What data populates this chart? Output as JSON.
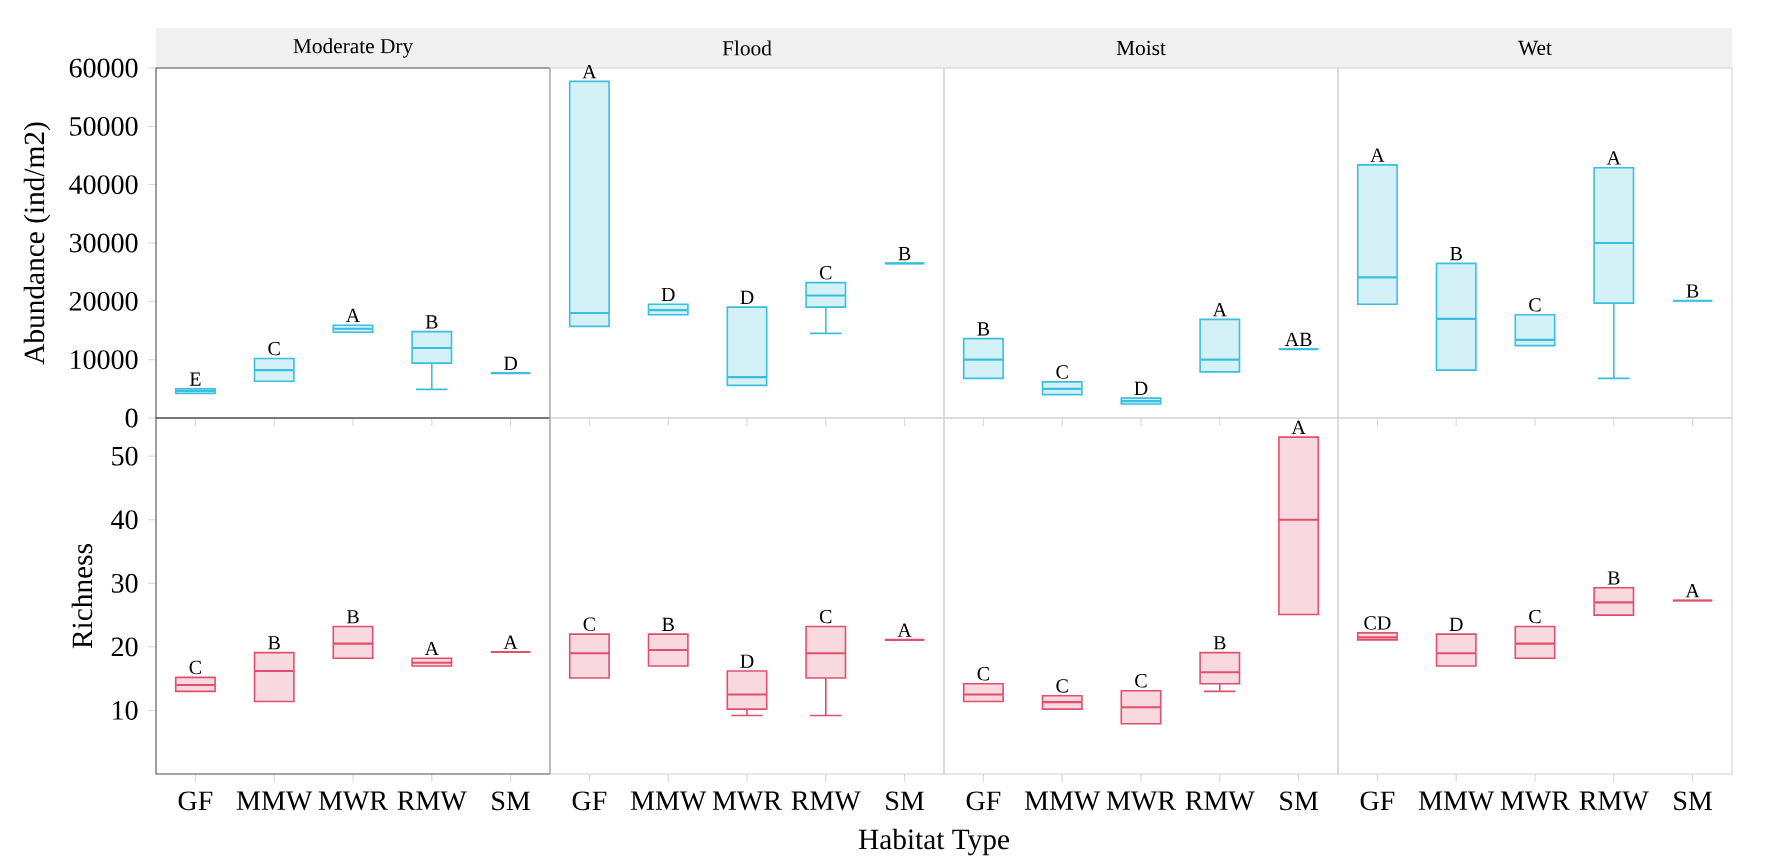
{
  "chart_data": [
    {
      "type": "box",
      "title": "Moderate Dry",
      "ylabel": "Abundance (ind/m2)",
      "color": "#3bbfe0",
      "categories": [
        "GF",
        "MMW",
        "MWR",
        "RMW",
        "SM"
      ],
      "ylim": [
        0,
        60000
      ],
      "yticks": [
        0,
        10000,
        20000,
        30000,
        40000,
        50000,
        60000
      ],
      "tick_labels": "y",
      "boxes": [
        {
          "low": 4200,
          "q1": 4200,
          "median": 4600,
          "q3": 5000,
          "high": 5000
        },
        {
          "low": 6300,
          "q1": 6300,
          "median": 8200,
          "q3": 10200,
          "high": 10200
        },
        {
          "low": 14700,
          "q1": 14700,
          "median": 15300,
          "q3": 15900,
          "high": 15900
        },
        {
          "low": 4900,
          "q1": 9400,
          "median": 12000,
          "q3": 14800,
          "high": 14800
        },
        {
          "low": 7700,
          "q1": 7700,
          "median": 7700,
          "q3": 7700,
          "high": 7700
        }
      ],
      "annotations": [
        {
          "text": "E",
          "x": "GF",
          "y": 5000
        },
        {
          "text": "C",
          "x": "MMW",
          "y": 10200
        },
        {
          "text": "A",
          "x": "MWR",
          "y": 15900
        },
        {
          "text": "B",
          "x": "RMW",
          "y": 14800
        },
        {
          "text": "D",
          "x": "SM",
          "y": 7700
        }
      ]
    },
    {
      "type": "box",
      "title": "Flood",
      "color": "#3bbfe0",
      "categories": [
        "GF",
        "MMW",
        "MWR",
        "RMW",
        "SM"
      ],
      "ylim": [
        0,
        60000
      ],
      "yticks": [
        0,
        10000,
        20000,
        30000,
        40000,
        50000,
        60000
      ],
      "tick_labels": false,
      "boxes": [
        {
          "low": 15700,
          "q1": 15700,
          "median": 18000,
          "q3": 57700,
          "high": 57700
        },
        {
          "low": 17700,
          "q1": 17700,
          "median": 18500,
          "q3": 19500,
          "high": 19500
        },
        {
          "low": 5600,
          "q1": 5600,
          "median": 7000,
          "q3": 19000,
          "high": 19000
        },
        {
          "low": 14500,
          "q1": 19000,
          "median": 21000,
          "q3": 23200,
          "high": 23200
        },
        {
          "low": 26500,
          "q1": 26500,
          "median": 26500,
          "q3": 26500,
          "high": 26500
        }
      ],
      "annotations": [
        {
          "text": "A",
          "x": "GF",
          "y": 57700
        },
        {
          "text": "D",
          "x": "MMW",
          "y": 19500
        },
        {
          "text": "D",
          "x": "MWR",
          "y": 19000
        },
        {
          "text": "C",
          "x": "RMW",
          "y": 23200
        },
        {
          "text": "B",
          "x": "SM",
          "y": 26500
        }
      ]
    },
    {
      "type": "box",
      "title": "Moist",
      "color": "#3bbfe0",
      "categories": [
        "GF",
        "MMW",
        "MWR",
        "RMW",
        "SM"
      ],
      "ylim": [
        0,
        60000
      ],
      "yticks": [
        0,
        10000,
        20000,
        30000,
        40000,
        50000,
        60000
      ],
      "tick_labels": false,
      "boxes": [
        {
          "low": 6800,
          "q1": 6800,
          "median": 10000,
          "q3": 13600,
          "high": 13600
        },
        {
          "low": 4000,
          "q1": 4000,
          "median": 5000,
          "q3": 6200,
          "high": 6200
        },
        {
          "low": 2400,
          "q1": 2400,
          "median": 2900,
          "q3": 3400,
          "high": 3400
        },
        {
          "low": 7900,
          "q1": 7900,
          "median": 10000,
          "q3": 16900,
          "high": 16900
        },
        {
          "low": 11800,
          "q1": 11800,
          "median": 11800,
          "q3": 11800,
          "high": 11800
        }
      ],
      "annotations": [
        {
          "text": "B",
          "x": "GF",
          "y": 13600
        },
        {
          "text": "C",
          "x": "MMW",
          "y": 6200
        },
        {
          "text": "D",
          "x": "MWR",
          "y": 3400
        },
        {
          "text": "A",
          "x": "RMW",
          "y": 16900
        },
        {
          "text": "AB",
          "x": "SM",
          "y": 11800
        }
      ]
    },
    {
      "type": "box",
      "title": "Wet",
      "color": "#3bbfe0",
      "categories": [
        "GF",
        "MMW",
        "MWR",
        "RMW",
        "SM"
      ],
      "ylim": [
        0,
        60000
      ],
      "yticks": [
        0,
        10000,
        20000,
        30000,
        40000,
        50000,
        60000
      ],
      "tick_labels": false,
      "boxes": [
        {
          "low": 19500,
          "q1": 19500,
          "median": 24100,
          "q3": 43400,
          "high": 43400
        },
        {
          "low": 8200,
          "q1": 8200,
          "median": 17000,
          "q3": 26500,
          "high": 26500
        },
        {
          "low": 12400,
          "q1": 12400,
          "median": 13400,
          "q3": 17700,
          "high": 17700
        },
        {
          "low": 6800,
          "q1": 19700,
          "median": 30000,
          "q3": 42900,
          "high": 42900
        },
        {
          "low": 20100,
          "q1": 20100,
          "median": 20100,
          "q3": 20100,
          "high": 20100
        }
      ],
      "annotations": [
        {
          "text": "A",
          "x": "GF",
          "y": 43400
        },
        {
          "text": "B",
          "x": "MMW",
          "y": 26500
        },
        {
          "text": "C",
          "x": "MWR",
          "y": 17700
        },
        {
          "text": "A",
          "x": "RMW",
          "y": 42900
        },
        {
          "text": "B",
          "x": "SM",
          "y": 20100
        }
      ]
    },
    {
      "type": "box",
      "ylabel": "Richness",
      "color": "#e0506e",
      "categories": [
        "GF",
        "MMW",
        "MWR",
        "RMW",
        "SM"
      ],
      "ylim": [
        0,
        56
      ],
      "yticks": [
        10,
        20,
        30,
        40,
        50
      ],
      "boxes": [
        {
          "low": 13.0,
          "q1": 13.0,
          "median": 14,
          "q3": 15.2,
          "high": 15.2
        },
        {
          "low": 11.4,
          "q1": 11.4,
          "median": 16.2,
          "q3": 19.1,
          "high": 19.1
        },
        {
          "low": 18.2,
          "q1": 18.2,
          "median": 20.5,
          "q3": 23.2,
          "high": 23.2
        },
        {
          "low": 17.0,
          "q1": 17.0,
          "median": 17.5,
          "q3": 18.2,
          "high": 18.2
        },
        {
          "low": 19.2,
          "q1": 19.2,
          "median": 19.2,
          "q3": 19.2,
          "high": 19.2
        }
      ],
      "annotations": [
        {
          "text": "C",
          "x": "GF",
          "y": 15.2
        },
        {
          "text": "B",
          "x": "MMW",
          "y": 19.1
        },
        {
          "text": "B",
          "x": "MWR",
          "y": 23.2
        },
        {
          "text": "A",
          "x": "RMW",
          "y": 18.2
        },
        {
          "text": "A",
          "x": "SM",
          "y": 19.2
        }
      ]
    },
    {
      "type": "box",
      "xlabel": "Habitat Type",
      "color": "#e0506e",
      "categories": [
        "GF",
        "MMW",
        "MWR",
        "RMW",
        "SM"
      ],
      "ylim": [
        0,
        56
      ],
      "yticks": [
        10,
        20,
        30,
        40,
        50
      ],
      "tick_labels": "x",
      "boxes": [
        {
          "low": 15.1,
          "q1": 15.1,
          "median": 19,
          "q3": 22.0,
          "high": 22.0
        },
        {
          "low": 17.0,
          "q1": 17.0,
          "median": 19.5,
          "q3": 22.0,
          "high": 22.0
        },
        {
          "low": 9.2,
          "q1": 10.2,
          "median": 12.5,
          "q3": 16.2,
          "high": 16.2
        },
        {
          "low": 9.2,
          "q1": 15.1,
          "median": 19,
          "q3": 23.2,
          "high": 23.2
        },
        {
          "low": 21.1,
          "q1": 21.1,
          "median": 21.1,
          "q3": 21.1,
          "high": 21.1
        }
      ],
      "annotations": [
        {
          "text": "C",
          "x": "GF",
          "y": 22.0
        },
        {
          "text": "B",
          "x": "MMW",
          "y": 22.0
        },
        {
          "text": "D",
          "x": "MWR",
          "y": 16.2
        },
        {
          "text": "C",
          "x": "RMW",
          "y": 23.2
        },
        {
          "text": "A",
          "x": "SM",
          "y": 21.1
        }
      ]
    },
    {
      "type": "box",
      "color": "#e0506e",
      "categories": [
        "GF",
        "MMW",
        "MWR",
        "RMW",
        "SM"
      ],
      "ylim": [
        0,
        56
      ],
      "yticks": [
        10,
        20,
        30,
        40,
        50
      ],
      "tick_labels": "x",
      "boxes": [
        {
          "low": 11.4,
          "q1": 11.4,
          "median": 12.5,
          "q3": 14.2,
          "high": 14.2
        },
        {
          "low": 10.2,
          "q1": 10.2,
          "median": 11.3,
          "q3": 12.3,
          "high": 12.3
        },
        {
          "low": 7.9,
          "q1": 7.9,
          "median": 10.5,
          "q3": 13.1,
          "high": 13.1
        },
        {
          "low": 13.0,
          "q1": 14.2,
          "median": 16,
          "q3": 19.1,
          "high": 19.1
        },
        {
          "low": 25.1,
          "q1": 25.1,
          "median": 40,
          "q3": 53.0,
          "high": 53.0
        }
      ],
      "annotations": [
        {
          "text": "C",
          "x": "GF",
          "y": 14.2
        },
        {
          "text": "C",
          "x": "MMW",
          "y": 12.3
        },
        {
          "text": "C",
          "x": "MWR",
          "y": 13.1
        },
        {
          "text": "B",
          "x": "RMW",
          "y": 19.1
        },
        {
          "text": "A",
          "x": "SM",
          "y": 53.0
        }
      ]
    },
    {
      "type": "box",
      "color": "#e0506e",
      "categories": [
        "GF",
        "MMW",
        "MWR",
        "RMW",
        "SM"
      ],
      "ylim": [
        0,
        56
      ],
      "yticks": [
        10,
        20,
        30,
        40,
        50
      ],
      "tick_labels": "x",
      "boxes": [
        {
          "low": 21.1,
          "q1": 21.1,
          "median": 21.5,
          "q3": 22.2,
          "high": 22.2
        },
        {
          "low": 17.0,
          "q1": 17.0,
          "median": 19,
          "q3": 22.0,
          "high": 22.0
        },
        {
          "low": 18.2,
          "q1": 18.2,
          "median": 20.5,
          "q3": 23.2,
          "high": 23.2
        },
        {
          "low": 25.0,
          "q1": 25.0,
          "median": 27,
          "q3": 29.3,
          "high": 29.3
        },
        {
          "low": 27.3,
          "q1": 27.3,
          "median": 27.3,
          "q3": 27.3,
          "high": 27.3
        }
      ],
      "annotations": [
        {
          "text": "CD",
          "x": "GF",
          "y": 22.2
        },
        {
          "text": "D",
          "x": "MMW",
          "y": 22.0
        },
        {
          "text": "C",
          "x": "MWR",
          "y": 23.2
        },
        {
          "text": "B",
          "x": "RMW",
          "y": 29.3
        },
        {
          "text": "A",
          "x": "SM",
          "y": 27.3
        }
      ]
    }
  ]
}
